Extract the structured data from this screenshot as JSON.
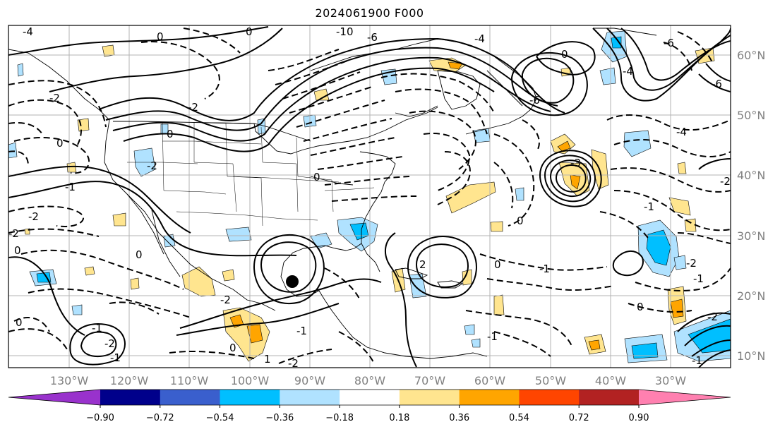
{
  "title": "2024061900 F000",
  "lon_ticks": [
    "130°W",
    "120°W",
    "110°W",
    "100°W",
    "90°W",
    "80°W",
    "70°W",
    "60°W",
    "50°W",
    "40°W",
    "30°W"
  ],
  "lat_ticks": [
    "60°N",
    "50°N",
    "40°N",
    "30°N",
    "20°N",
    "10°N"
  ],
  "colorbar": {
    "tick_labels": [
      "−0.90",
      "−0.72",
      "−0.54",
      "−0.36",
      "−0.18",
      "0.18",
      "0.36",
      "0.54",
      "0.72",
      "0.90"
    ],
    "colors": [
      "#9932cc",
      "#00008b",
      "#3a5fcd",
      "#00bfff",
      "#b0e2ff",
      "#ffffff",
      "#ffe58f",
      "#ffa500",
      "#ff4500",
      "#b22222",
      "#ff80b0"
    ]
  },
  "contour_labels": [
    "-4",
    "0",
    "-10",
    "-6",
    "-4",
    "0",
    "-6",
    "-2",
    "-6",
    "-4",
    "-2",
    "0",
    "-2",
    "0",
    "-1",
    "-2",
    "0",
    "-2",
    "-6",
    "-4",
    "-2",
    "0",
    "-1",
    "0",
    "-1",
    "0",
    "-1",
    "0",
    "-2",
    "0",
    "-1",
    "-2",
    "-1",
    "0",
    "1",
    "-1",
    "-2",
    "-3",
    "0",
    "-2",
    "-1",
    "2",
    "-1",
    "0",
    "-2"
  ],
  "marker": "storm-center"
}
